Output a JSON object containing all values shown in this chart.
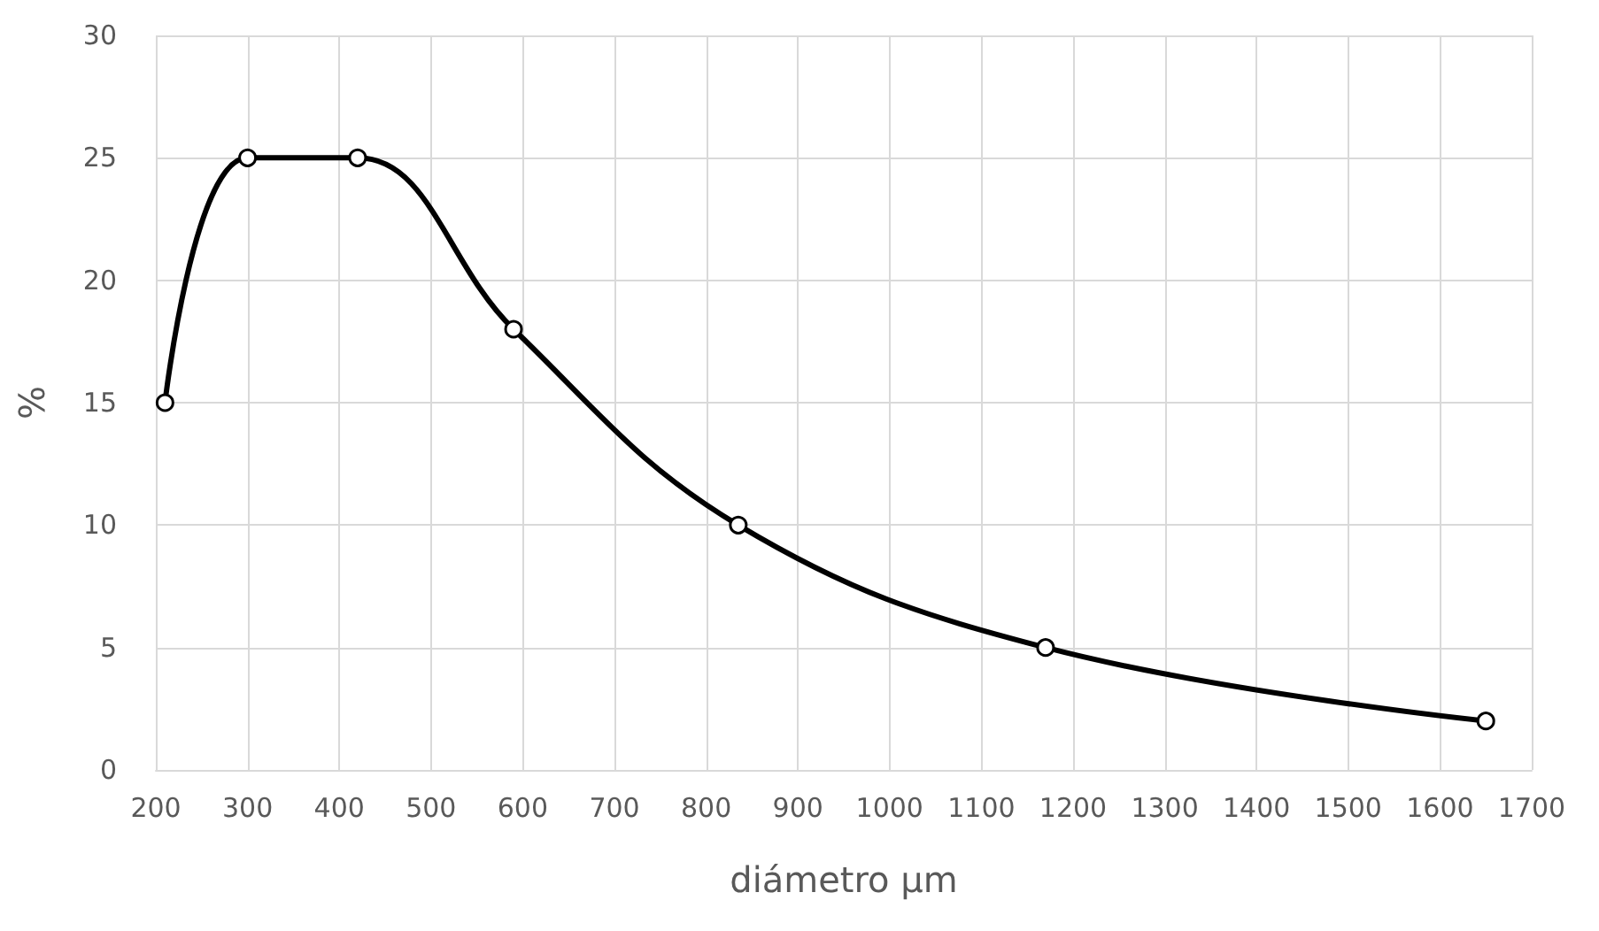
{
  "chart_data": {
    "type": "line",
    "xlabel": "diámetro µm",
    "ylabel": "%",
    "x": [
      210,
      300,
      420,
      590,
      835,
      1170,
      1650
    ],
    "series": [
      {
        "color": "#000000",
        "values": [
          15,
          25,
          25,
          18,
          10,
          5,
          2
        ]
      }
    ],
    "xlim": [
      200,
      1700
    ],
    "xticks": [
      200,
      300,
      400,
      500,
      600,
      700,
      800,
      900,
      1000,
      1100,
      1200,
      1300,
      1400,
      1500,
      1600,
      1700
    ],
    "ylim": [
      0,
      30
    ],
    "yticks": [
      0,
      5,
      10,
      15,
      20,
      25,
      30
    ],
    "grid": true,
    "marker": "circle",
    "line_style": "solid"
  }
}
